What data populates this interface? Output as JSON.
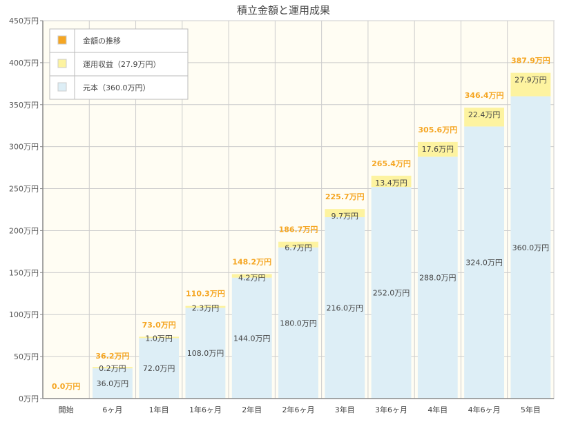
{
  "chart_data": {
    "type": "bar",
    "stacked": true,
    "title": "積立金額と運用成果",
    "xlabel": "",
    "ylabel": "",
    "categories": [
      "開始",
      "6ヶ月",
      "1年目",
      "1年6ヶ月",
      "2年目",
      "2年6ヶ月",
      "3年目",
      "3年6ヶ月",
      "4年目",
      "4年6ヶ月",
      "5年目"
    ],
    "series": [
      {
        "name": "元本（360.0万円）",
        "values": [
          0,
          36.0,
          72.0,
          108.0,
          144.0,
          180.0,
          216.0,
          252.0,
          288.0,
          324.0,
          360.0
        ],
        "labels": [
          "",
          "36.0万円",
          "72.0万円",
          "108.0万円",
          "144.0万円",
          "180.0万円",
          "216.0万円",
          "252.0万円",
          "288.0万円",
          "324.0万円",
          "360.0万円"
        ],
        "color": "#ddeef6"
      },
      {
        "name": "運用収益（27.9万円）",
        "values": [
          0,
          0.2,
          1.0,
          2.3,
          4.2,
          6.7,
          9.7,
          13.4,
          17.6,
          22.4,
          27.9
        ],
        "labels": [
          "",
          "0.2万円",
          "1.0万円",
          "2.3万円",
          "4.2万円",
          "6.7万円",
          "9.7万円",
          "13.4万円",
          "17.6万円",
          "22.4万円",
          "27.9万円"
        ],
        "color": "#fdf3a0"
      }
    ],
    "totals": {
      "name": "金額の推移",
      "values": [
        0.0,
        36.2,
        73.0,
        110.3,
        148.2,
        186.7,
        225.7,
        265.4,
        305.6,
        346.4,
        387.9
      ],
      "labels": [
        "0.0万円",
        "36.2万円",
        "73.0万円",
        "110.3万円",
        "148.2万円",
        "186.7万円",
        "225.7万円",
        "265.4万円",
        "305.6万円",
        "346.4万円",
        "387.9万円"
      ],
      "color": "#f5a623"
    },
    "yticks": [
      0,
      50,
      100,
      150,
      200,
      250,
      300,
      350,
      400,
      450
    ],
    "ytick_labels": [
      "0万円",
      "50万円",
      "100万円",
      "150万円",
      "200万円",
      "250万円",
      "300万円",
      "350万円",
      "400万円",
      "450万円"
    ],
    "ylim": [
      0,
      450
    ],
    "grid": true,
    "legend_position": "top-left",
    "colors": {
      "plot_bg": "#fffdf3",
      "grid": "#cccccc",
      "axis": "#888888",
      "label_text": "#555555"
    }
  }
}
